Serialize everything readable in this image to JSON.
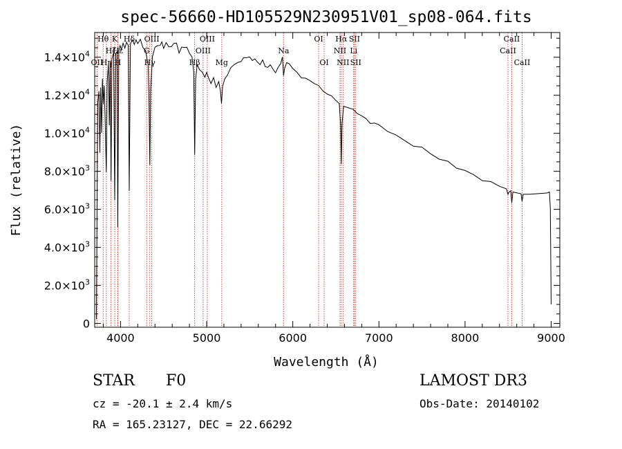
{
  "chart_data": {
    "type": "line",
    "title": "spec-56660-HD105529N230951V01_sp08-064.fits",
    "xlabel": "Wavelength (Å)",
    "ylabel": "Flux (relative)",
    "xlim": [
      3700,
      9100
    ],
    "ylim": [
      -200,
      15300
    ],
    "x_ticks": [
      4000,
      5000,
      6000,
      7000,
      8000,
      9000
    ],
    "x_tick_labels": [
      "4000",
      "5000",
      "6000",
      "7000",
      "8000",
      "9000"
    ],
    "y_ticks": [
      0,
      2000,
      4000,
      6000,
      8000,
      10000,
      12000,
      14000
    ],
    "y_tick_labels": [
      {
        "mant": "0",
        "exp": ""
      },
      {
        "mant": "2.0×10",
        "exp": "3"
      },
      {
        "mant": "4.0×10",
        "exp": "3"
      },
      {
        "mant": "6.0×10",
        "exp": "3"
      },
      {
        "mant": "8.0×10",
        "exp": "3"
      },
      {
        "mant": "1.0×10",
        "exp": "4"
      },
      {
        "mant": "1.2×10",
        "exp": "4"
      },
      {
        "mant": "1.4×10",
        "exp": "4"
      }
    ],
    "series": [
      {
        "name": "flux",
        "points": [
          [
            3720,
            200
          ],
          [
            3735,
            11600
          ],
          [
            3750,
            12300
          ],
          [
            3760,
            9000
          ],
          [
            3770,
            12400
          ],
          [
            3780,
            10000
          ],
          [
            3790,
            12800
          ],
          [
            3800,
            11500
          ],
          [
            3810,
            12600
          ],
          [
            3820,
            11000
          ],
          [
            3835,
            8000
          ],
          [
            3845,
            12800
          ],
          [
            3860,
            13600
          ],
          [
            3870,
            10500
          ],
          [
            3880,
            13800
          ],
          [
            3890,
            7500
          ],
          [
            3900,
            13900
          ],
          [
            3920,
            14200
          ],
          [
            3933,
            6500
          ],
          [
            3945,
            14100
          ],
          [
            3960,
            14300
          ],
          [
            3968,
            5100
          ],
          [
            3980,
            14300
          ],
          [
            3995,
            14600
          ],
          [
            4010,
            14400
          ],
          [
            4030,
            14700
          ],
          [
            4050,
            14500
          ],
          [
            4070,
            14800
          ],
          [
            4090,
            14600
          ],
          [
            4101,
            7000
          ],
          [
            4115,
            14700
          ],
          [
            4140,
            14900
          ],
          [
            4160,
            14600
          ],
          [
            4180,
            15000
          ],
          [
            4200,
            14700
          ],
          [
            4230,
            14900
          ],
          [
            4260,
            14500
          ],
          [
            4290,
            14300
          ],
          [
            4320,
            13600
          ],
          [
            4330,
            12000
          ],
          [
            4340,
            8300
          ],
          [
            4350,
            12200
          ],
          [
            4370,
            14100
          ],
          [
            4400,
            14500
          ],
          [
            4430,
            14700
          ],
          [
            4460,
            14600
          ],
          [
            4480,
            14800
          ],
          [
            4500,
            14500
          ],
          [
            4530,
            14700
          ],
          [
            4560,
            14600
          ],
          [
            4590,
            14500
          ],
          [
            4620,
            14800
          ],
          [
            4650,
            14700
          ],
          [
            4680,
            14300
          ],
          [
            4710,
            14500
          ],
          [
            4740,
            14600
          ],
          [
            4770,
            14500
          ],
          [
            4800,
            14300
          ],
          [
            4830,
            14000
          ],
          [
            4850,
            13200
          ],
          [
            4861,
            8900
          ],
          [
            4872,
            12800
          ],
          [
            4890,
            13600
          ],
          [
            4920,
            13400
          ],
          [
            4950,
            13200
          ],
          [
            4980,
            13000
          ],
          [
            5000,
            13200
          ],
          [
            5020,
            12900
          ],
          [
            5050,
            12700
          ],
          [
            5080,
            12900
          ],
          [
            5110,
            12500
          ],
          [
            5140,
            12700
          ],
          [
            5160,
            12200
          ],
          [
            5172,
            11600
          ],
          [
            5185,
            12400
          ],
          [
            5210,
            12800
          ],
          [
            5240,
            13100
          ],
          [
            5280,
            13400
          ],
          [
            5320,
            13600
          ],
          [
            5360,
            13800
          ],
          [
            5400,
            13700
          ],
          [
            5430,
            14000
          ],
          [
            5460,
            13900
          ],
          [
            5500,
            14000
          ],
          [
            5530,
            13800
          ],
          [
            5560,
            13900
          ],
          [
            5590,
            13700
          ],
          [
            5620,
            13600
          ],
          [
            5650,
            13800
          ],
          [
            5680,
            13500
          ],
          [
            5710,
            13400
          ],
          [
            5740,
            13600
          ],
          [
            5770,
            13300
          ],
          [
            5800,
            13200
          ],
          [
            5830,
            13400
          ],
          [
            5860,
            13700
          ],
          [
            5880,
            14000
          ],
          [
            5893,
            13100
          ],
          [
            5905,
            13400
          ],
          [
            5930,
            13700
          ],
          [
            5960,
            13600
          ],
          [
            6000,
            13400
          ],
          [
            6050,
            13200
          ],
          [
            6100,
            13000
          ],
          [
            6150,
            12900
          ],
          [
            6200,
            12700
          ],
          [
            6250,
            12600
          ],
          [
            6300,
            12500
          ],
          [
            6350,
            12300
          ],
          [
            6400,
            12100
          ],
          [
            6450,
            11900
          ],
          [
            6500,
            11700
          ],
          [
            6540,
            11600
          ],
          [
            6556,
            10400
          ],
          [
            6563,
            8400
          ],
          [
            6572,
            10500
          ],
          [
            6590,
            11500
          ],
          [
            6650,
            11400
          ],
          [
            6700,
            11200
          ],
          [
            6750,
            11000
          ],
          [
            6800,
            10900
          ],
          [
            6850,
            10800
          ],
          [
            6900,
            10600
          ],
          [
            6950,
            10500
          ],
          [
            7000,
            10400
          ],
          [
            7100,
            10100
          ],
          [
            7200,
            9900
          ],
          [
            7300,
            9600
          ],
          [
            7400,
            9400
          ],
          [
            7500,
            9200
          ],
          [
            7600,
            8900
          ],
          [
            7700,
            8700
          ],
          [
            7800,
            8500
          ],
          [
            7900,
            8200
          ],
          [
            8000,
            8000
          ],
          [
            8100,
            7800
          ],
          [
            8200,
            7600
          ],
          [
            8300,
            7400
          ],
          [
            8400,
            7200
          ],
          [
            8480,
            7050
          ],
          [
            8498,
            6700
          ],
          [
            8510,
            7000
          ],
          [
            8530,
            6950
          ],
          [
            8542,
            6300
          ],
          [
            8555,
            6900
          ],
          [
            8600,
            6850
          ],
          [
            8650,
            6800
          ],
          [
            8662,
            6400
          ],
          [
            8675,
            6800
          ],
          [
            8750,
            6850
          ],
          [
            8850,
            6800
          ],
          [
            8950,
            6900
          ],
          [
            8980,
            6850
          ],
          [
            8990,
            6000
          ],
          [
            9000,
            1000
          ]
        ]
      }
    ],
    "line_markers": [
      {
        "wavelength": 3727,
        "label": "OII",
        "row": 2
      },
      {
        "wavelength": 3798,
        "label": "Hθ",
        "row": 0
      },
      {
        "wavelength": 3835,
        "label": "Hη",
        "row": 2
      },
      {
        "wavelength": 3889,
        "label": "Hζ",
        "row": 1
      },
      {
        "wavelength": 3933,
        "label": "K",
        "row": 0
      },
      {
        "wavelength": 3968,
        "label": "H",
        "row": 2
      },
      {
        "wavelength": 3970,
        "label": "Hε",
        "row": 1
      },
      {
        "wavelength": 4101,
        "label": "Hδ",
        "row": 0
      },
      {
        "wavelength": 4304,
        "label": "G",
        "row": 1
      },
      {
        "wavelength": 4340,
        "label": "Hγ",
        "row": 2
      },
      {
        "wavelength": 4363,
        "label": "OIII",
        "row": 0
      },
      {
        "wavelength": 4861,
        "label": "Hβ",
        "row": 2
      },
      {
        "wavelength": 4959,
        "label": "OIII",
        "row": 1
      },
      {
        "wavelength": 5007,
        "label": "OIII",
        "row": 0
      },
      {
        "wavelength": 5175,
        "label": "Mg",
        "row": 2
      },
      {
        "wavelength": 5893,
        "label": "Na",
        "row": 1
      },
      {
        "wavelength": 6300,
        "label": "OI",
        "row": 0
      },
      {
        "wavelength": 6364,
        "label": "OI",
        "row": 2
      },
      {
        "wavelength": 6548,
        "label": "NII",
        "row": 1
      },
      {
        "wavelength": 6563,
        "label": "Hα",
        "row": 0
      },
      {
        "wavelength": 6583,
        "label": "NII",
        "row": 2
      },
      {
        "wavelength": 6707,
        "label": "Li",
        "row": 1
      },
      {
        "wavelength": 6716,
        "label": "SII",
        "row": 0
      },
      {
        "wavelength": 6731,
        "label": "SII",
        "row": 2
      },
      {
        "wavelength": 8498,
        "label": "CaII",
        "row": 1
      },
      {
        "wavelength": 8542,
        "label": "CaII",
        "row": 0
      },
      {
        "wavelength": 8662,
        "label": "CaII",
        "row": 2
      }
    ],
    "colors": {
      "line": "#000000",
      "marker": "#c8281e",
      "axis": "#000000"
    }
  },
  "info": {
    "object_class": "STAR",
    "subclass": "F0",
    "survey": "LAMOST DR3",
    "redshift": "cz = -20.1 ± 2.4 km/s",
    "obs_date": "Obs-Date: 20140102",
    "coords": "RA = 165.23127, DEC =  22.66292"
  }
}
